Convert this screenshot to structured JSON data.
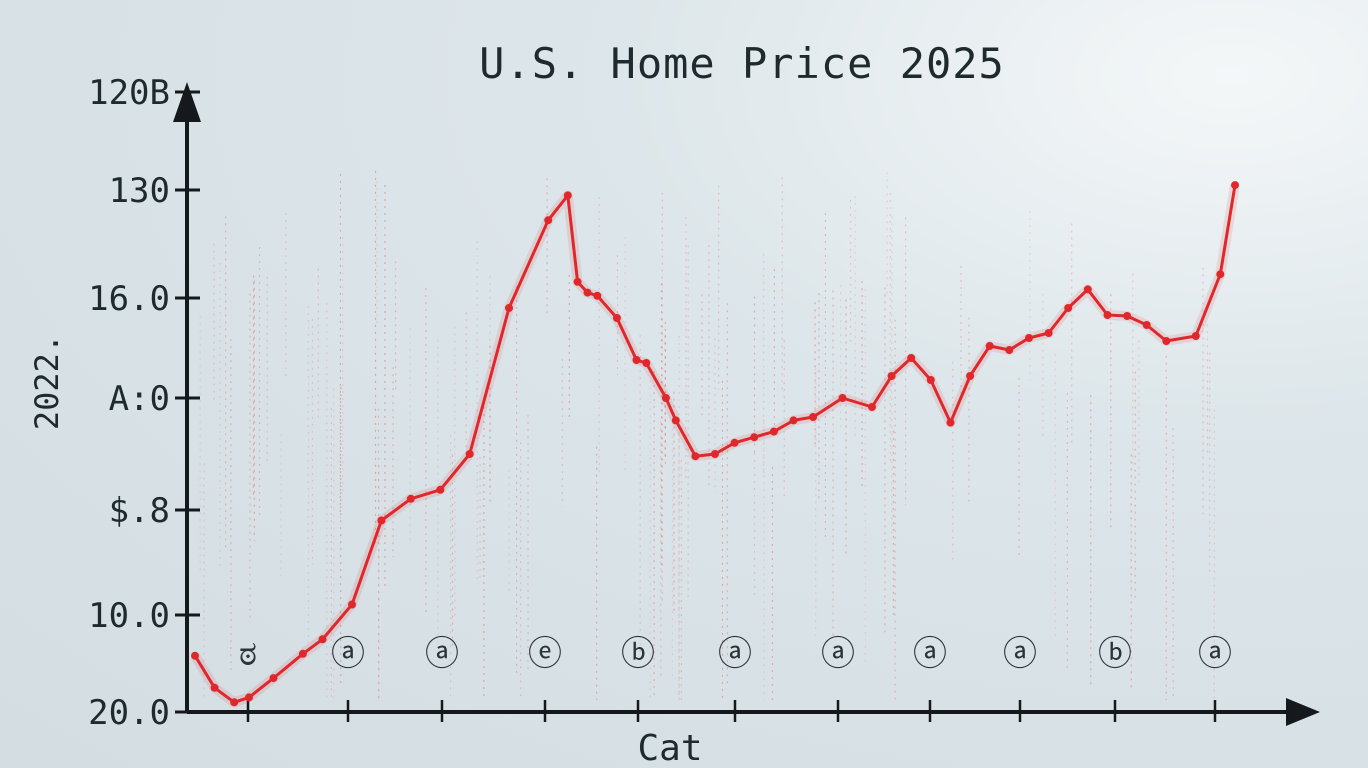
{
  "chart_data": {
    "type": "line",
    "title": "U.S. Home Price 2025",
    "xlabel": "Cat",
    "ylabel": "2022.",
    "yticks": [
      {
        "label": "120B",
        "level": 0
      },
      {
        "label": "130",
        "level": 1
      },
      {
        "label": "16.0",
        "level": 2
      },
      {
        "label": "A:0",
        "level": 3
      },
      {
        "label": "$.8",
        "level": 4
      },
      {
        "label": "10.0",
        "level": 5
      },
      {
        "label": "20.0",
        "level": 6
      }
    ],
    "xticks": [
      "ಠ",
      "ⓐ",
      "ⓐ",
      "ⓔ",
      "ⓑ",
      "ⓐ",
      "ⓐ",
      "ⓐ",
      "ⓐ",
      "ⓑ",
      "ⓐ"
    ],
    "series": [
      {
        "color": "#e0282c",
        "x": [
          0,
          0.2,
          0.4,
          0.55,
          0.8,
          1.1,
          1.3,
          1.6,
          1.9,
          2.2,
          2.5,
          2.8,
          3.2,
          3.6,
          3.8,
          3.9,
          4.0,
          4.1,
          4.3,
          4.5,
          4.6,
          4.8,
          4.9,
          5.1,
          5.3,
          5.5,
          5.7,
          5.9,
          6.1,
          6.3,
          6.6,
          6.9,
          7.1,
          7.3,
          7.5,
          7.7,
          7.9,
          8.1,
          8.3,
          8.5,
          8.7,
          8.9,
          9.1,
          9.3,
          9.5,
          9.7,
          9.9,
          10.2,
          10.45,
          10.6
        ],
        "y": [
          5.42,
          5.75,
          5.9,
          5.85,
          5.65,
          5.4,
          5.25,
          4.9,
          4.1,
          3.9,
          3.82,
          3.5,
          2.1,
          1.28,
          1.05,
          1.85,
          1.95,
          1.98,
          2.2,
          2.62,
          2.65,
          3.0,
          3.2,
          3.52,
          3.5,
          3.4,
          3.35,
          3.3,
          3.2,
          3.17,
          3.0,
          3.08,
          2.78,
          2.6,
          2.82,
          3.22,
          2.78,
          2.48,
          2.52,
          2.4,
          2.35,
          2.1,
          1.92,
          2.17,
          2.18,
          2.27,
          2.43,
          2.38,
          1.78,
          0.95
        ]
      }
    ]
  }
}
